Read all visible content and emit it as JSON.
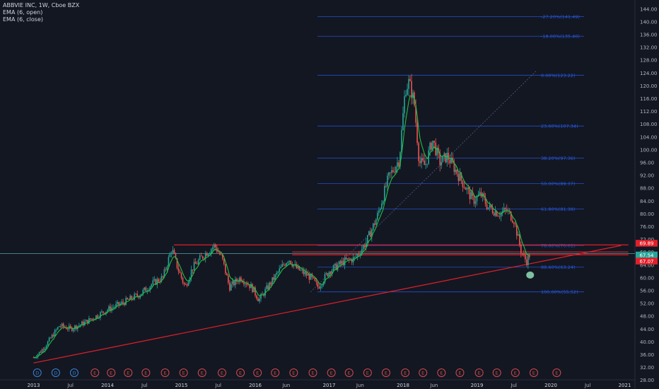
{
  "legend": {
    "symbol": "ABBVIE INC, 1W, Cboe BZX",
    "ema_open": "EMA (6, open)",
    "ema_close": "EMA (6, close)"
  },
  "colors": {
    "background": "#131722",
    "up": "#26a69a",
    "down": "#ef5350",
    "ema": "#20c040",
    "line": "#e0202a",
    "fib": "#2962ff",
    "text": "#b2b5be"
  },
  "chart_data": {
    "type": "candlestick",
    "title": "ABBVIE INC, 1W, Cboe BZX",
    "ylim": [
      28,
      144
    ],
    "y_ticks": [
      "144.00",
      "140.00",
      "136.00",
      "132.00",
      "128.00",
      "124.00",
      "120.00",
      "116.00",
      "112.00",
      "108.00",
      "104.00",
      "100.00",
      "96.00",
      "92.00",
      "88.00",
      "84.00",
      "80.00",
      "76.00",
      "72.00",
      "68.00",
      "64.00",
      "60.00",
      "56.00",
      "52.00",
      "48.00",
      "44.00",
      "40.00",
      "36.00",
      "32.00",
      "28.00"
    ],
    "x_ticks": [
      "2013",
      "Jul",
      "2014",
      "Jul",
      "2015",
      "Jul",
      "2016",
      "Jun",
      "2017",
      "Jun",
      "2018",
      "Jun",
      "2019",
      "Jul",
      "2020",
      "Jul",
      "2021"
    ],
    "price_labels": [
      {
        "text": "69.89",
        "value": 69.89
      },
      {
        "text": "67.54",
        "value": 67.54
      },
      {
        "text": "67.07",
        "value": 67.07
      }
    ],
    "fib_levels": [
      {
        "label": "-27.20%(141.49)",
        "value": 141.49
      },
      {
        "label": "-18.00%(135.40)",
        "value": 135.4
      },
      {
        "label": "0.00%(123.22)",
        "value": 123.22
      },
      {
        "label": "23.60%(107.34)",
        "value": 107.34
      },
      {
        "label": "38.20%(97.36)",
        "value": 97.36
      },
      {
        "label": "50.00%(89.37)",
        "value": 89.37
      },
      {
        "label": "61.80%(81.38)",
        "value": 81.38
      },
      {
        "label": "78.60%(70.01)",
        "value": 70.01
      },
      {
        "label": "88.60%(63.24)",
        "value": 63.24
      },
      {
        "label": "100.00%(55.52)",
        "value": 55.52
      }
    ],
    "price_path": [
      [
        2013.0,
        35.0
      ],
      [
        2013.1,
        37.0
      ],
      [
        2013.2,
        40.0
      ],
      [
        2013.35,
        45.0
      ],
      [
        2013.5,
        44.0
      ],
      [
        2013.7,
        46.0
      ],
      [
        2014.0,
        50.0
      ],
      [
        2014.2,
        52.0
      ],
      [
        2014.45,
        55.0
      ],
      [
        2014.6,
        58.0
      ],
      [
        2014.75,
        60.0
      ],
      [
        2014.87,
        69.0
      ],
      [
        2014.95,
        63.0
      ],
      [
        2015.05,
        57.0
      ],
      [
        2015.15,
        63.0
      ],
      [
        2015.3,
        67.0
      ],
      [
        2015.45,
        70.0
      ],
      [
        2015.55,
        66.0
      ],
      [
        2015.65,
        57.0
      ],
      [
        2015.8,
        60.0
      ],
      [
        2015.95,
        57.0
      ],
      [
        2016.05,
        53.0
      ],
      [
        2016.2,
        58.0
      ],
      [
        2016.35,
        63.0
      ],
      [
        2016.45,
        66.0
      ],
      [
        2016.55,
        63.0
      ],
      [
        2016.75,
        60.0
      ],
      [
        2016.85,
        57.0
      ],
      [
        2017.0,
        62.0
      ],
      [
        2017.2,
        65.0
      ],
      [
        2017.35,
        66.0
      ],
      [
        2017.5,
        71.0
      ],
      [
        2017.65,
        79.0
      ],
      [
        2017.8,
        91.0
      ],
      [
        2017.95,
        97.0
      ],
      [
        2018.03,
        119.0
      ],
      [
        2018.08,
        121.0
      ],
      [
        2018.15,
        115.0
      ],
      [
        2018.22,
        96.0
      ],
      [
        2018.3,
        95.0
      ],
      [
        2018.4,
        103.0
      ],
      [
        2018.5,
        96.0
      ],
      [
        2018.6,
        98.0
      ],
      [
        2018.75,
        92.0
      ],
      [
        2018.85,
        88.0
      ],
      [
        2018.95,
        84.0
      ],
      [
        2019.05,
        86.0
      ],
      [
        2019.15,
        82.0
      ],
      [
        2019.3,
        80.0
      ],
      [
        2019.4,
        81.0
      ],
      [
        2019.5,
        78.0
      ],
      [
        2019.55,
        73.0
      ],
      [
        2019.6,
        68.0
      ],
      [
        2019.67,
        65.0
      ],
      [
        2019.72,
        67.5
      ]
    ],
    "series": [
      {
        "name": "EMA (6, open)"
      },
      {
        "name": "EMA (6, close)"
      }
    ],
    "trendlines": [
      {
        "kind": "support",
        "from": [
          2013.0,
          33.3
        ],
        "to": [
          2020.95,
          70.0
        ]
      },
      {
        "kind": "resistance",
        "from": [
          2014.9,
          70.2
        ],
        "to": [
          2021.05,
          70.2
        ]
      },
      {
        "kind": "resistance",
        "from": [
          2016.5,
          68.0
        ],
        "to": [
          2021.05,
          68.0
        ]
      },
      {
        "kind": "resistance",
        "from": [
          2016.5,
          67.1
        ],
        "to": [
          2021.05,
          67.1
        ]
      }
    ],
    "fib_extension_line": {
      "from": [
        2016.75,
        55.5
      ],
      "to": [
        2019.8,
        124.5
      ]
    },
    "marker": {
      "date": 2019.72,
      "value": 61.0
    },
    "event_markers": [
      {
        "text": "D",
        "x": 2013.05,
        "kind": "dividend"
      },
      {
        "text": "D",
        "x": 2013.3,
        "kind": "dividend"
      },
      {
        "text": "D",
        "x": 2013.55,
        "kind": "dividend"
      },
      {
        "text": "E",
        "x": 2013.83,
        "kind": "earnings"
      },
      {
        "text": "E",
        "x": 2014.05,
        "kind": "earnings"
      },
      {
        "text": "E",
        "x": 2014.28,
        "kind": "earnings"
      },
      {
        "text": "E",
        "x": 2014.52,
        "kind": "earnings"
      },
      {
        "text": "E",
        "x": 2014.78,
        "kind": "earnings"
      },
      {
        "text": "E",
        "x": 2015.03,
        "kind": "earnings"
      },
      {
        "text": "E",
        "x": 2015.28,
        "kind": "earnings"
      },
      {
        "text": "E",
        "x": 2015.55,
        "kind": "earnings"
      },
      {
        "text": "E",
        "x": 2015.8,
        "kind": "earnings"
      },
      {
        "text": "E",
        "x": 2016.03,
        "kind": "earnings"
      },
      {
        "text": "E",
        "x": 2016.27,
        "kind": "earnings"
      },
      {
        "text": "E",
        "x": 2016.52,
        "kind": "earnings"
      },
      {
        "text": "E",
        "x": 2016.78,
        "kind": "earnings"
      },
      {
        "text": "E",
        "x": 2017.03,
        "kind": "earnings"
      },
      {
        "text": "E",
        "x": 2017.27,
        "kind": "earnings"
      },
      {
        "text": "E",
        "x": 2017.52,
        "kind": "earnings"
      },
      {
        "text": "E",
        "x": 2017.77,
        "kind": "earnings"
      },
      {
        "text": "E",
        "x": 2018.03,
        "kind": "earnings"
      },
      {
        "text": "E",
        "x": 2018.27,
        "kind": "earnings"
      },
      {
        "text": "E",
        "x": 2018.52,
        "kind": "earnings"
      },
      {
        "text": "E",
        "x": 2018.77,
        "kind": "earnings"
      },
      {
        "text": "E",
        "x": 2019.03,
        "kind": "earnings"
      },
      {
        "text": "E",
        "x": 2019.27,
        "kind": "earnings"
      },
      {
        "text": "E",
        "x": 2019.52,
        "kind": "earnings"
      },
      {
        "text": "E",
        "x": 2019.77,
        "kind": "earnings"
      },
      {
        "text": "E",
        "x": 2020.08,
        "kind": "earnings"
      }
    ]
  }
}
